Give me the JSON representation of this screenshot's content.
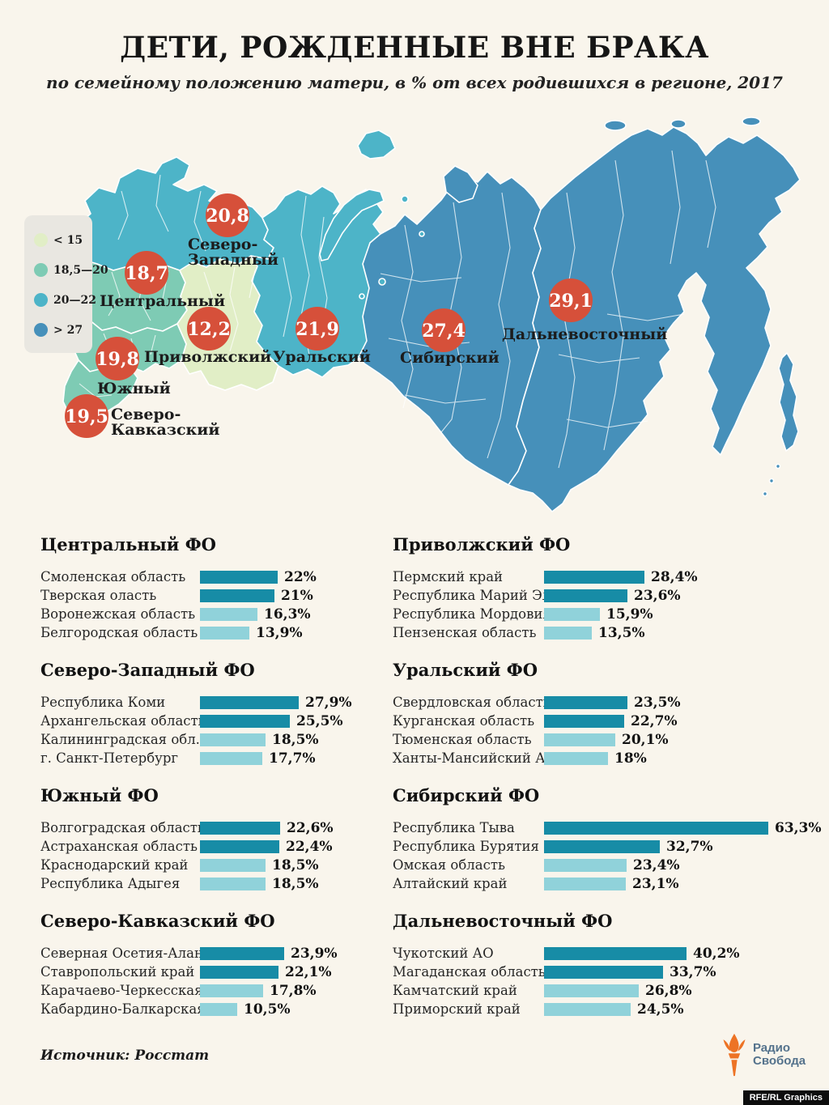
{
  "header": {
    "title": "ДЕТИ, РОЖДЕННЫЕ ВНЕ БРАКА",
    "subtitle": "по семейному положению матери, в % от всех родившихся в регионе, 2017"
  },
  "legend": {
    "items": [
      {
        "label": "< 15",
        "color": "#e1eec6"
      },
      {
        "label": "18,5—20",
        "color": "#7ecbb4"
      },
      {
        "label": "20—22",
        "color": "#4db4c8"
      },
      {
        "label": "> 27",
        "color": "#4690ba"
      }
    ]
  },
  "map": {
    "palette": {
      "lt15": "#e1eec6",
      "b18_20": "#7ecbb4",
      "b20_22": "#4db4c8",
      "gt27": "#4690ba"
    },
    "badge_color": "#d6503a",
    "badge_text_color": "#ffffff"
  },
  "chart_data": [
    {
      "type": "choropleth",
      "title": "Дети, рожденные вне брака по федеральным округам, %",
      "legend_bins": [
        "< 15",
        "18,5—20",
        "20—22",
        "> 27"
      ],
      "districts": [
        {
          "name": "Северо-Западный",
          "value": 20.8,
          "display": "20,8",
          "label_lines": [
            "Северо-",
            "Западный"
          ],
          "badge": [
            281,
            128
          ],
          "label": [
            232,
            170
          ]
        },
        {
          "name": "Центральный",
          "value": 18.7,
          "display": "18,7",
          "label_lines": [
            "Центральный"
          ],
          "badge": [
            181,
            199
          ],
          "label": [
            123,
            240
          ]
        },
        {
          "name": "Приволжский",
          "value": 12.2,
          "display": "12,2",
          "label_lines": [
            "Приволжский"
          ],
          "badge": [
            258,
            268
          ],
          "label": [
            178,
            309
          ]
        },
        {
          "name": "Уральский",
          "value": 21.9,
          "display": "21,9",
          "label_lines": [
            "Уральский"
          ],
          "badge": [
            392,
            268
          ],
          "label": [
            337,
            309
          ]
        },
        {
          "name": "Сибирский",
          "value": 27.4,
          "display": "27,4",
          "label_lines": [
            "Сибирский"
          ],
          "badge": [
            548,
            270
          ],
          "label": [
            494,
            310
          ]
        },
        {
          "name": "Дальневосточный",
          "value": 29.1,
          "display": "29,1",
          "label_lines": [
            "Дальневосточный"
          ],
          "badge": [
            705,
            233
          ],
          "label": [
            620,
            281
          ]
        },
        {
          "name": "Южный",
          "value": 19.8,
          "display": "19,8",
          "label_lines": [
            "Южный"
          ],
          "badge": [
            145,
            305
          ],
          "label": [
            120,
            348
          ]
        },
        {
          "name": "Северо-Кавказский",
          "value": 19.5,
          "display": "19,5",
          "label_lines": [
            "Северо-",
            "Кавказский"
          ],
          "badge": [
            107,
            376
          ],
          "label": [
            137,
            380
          ]
        }
      ]
    },
    {
      "type": "bar",
      "title": "Центральный ФО",
      "column": "left",
      "rows": [
        {
          "region": "Смоленская область",
          "value": 22,
          "display": "22%"
        },
        {
          "region": "Тверская оласть",
          "value": 21,
          "display": "21%"
        },
        {
          "region": "Воронежская область",
          "value": 16.3,
          "display": "16,3%"
        },
        {
          "region": "Белгородская область",
          "value": 13.9,
          "display": "13,9%"
        }
      ]
    },
    {
      "type": "bar",
      "title": "Приволжский ФО",
      "column": "right",
      "rows": [
        {
          "region": "Пермский край",
          "value": 28.4,
          "display": "28,4%"
        },
        {
          "region": "Республика Марий Эл",
          "value": 23.6,
          "display": "23,6%"
        },
        {
          "region": "Республика Мордовия",
          "value": 15.9,
          "display": "15,9%"
        },
        {
          "region": "Пензенская область",
          "value": 13.5,
          "display": "13,5%"
        }
      ]
    },
    {
      "type": "bar",
      "title": "Северо-Западный ФО",
      "column": "left",
      "rows": [
        {
          "region": "Республика Коми",
          "value": 27.9,
          "display": "27,9%"
        },
        {
          "region": "Архангельская область",
          "value": 25.5,
          "display": "25,5%"
        },
        {
          "region": "Калининградская обл.",
          "value": 18.5,
          "display": "18,5%"
        },
        {
          "region": "г. Санкт-Петербург",
          "value": 17.7,
          "display": "17,7%"
        }
      ]
    },
    {
      "type": "bar",
      "title": "Уральский ФО",
      "column": "right",
      "rows": [
        {
          "region": "Свердловская область",
          "value": 23.5,
          "display": "23,5%"
        },
        {
          "region": "Курганская область",
          "value": 22.7,
          "display": "22,7%"
        },
        {
          "region": "Тюменская область",
          "value": 20.1,
          "display": "20,1%"
        },
        {
          "region": "Ханты-Мансийский АО",
          "value": 18,
          "display": "18%"
        }
      ]
    },
    {
      "type": "bar",
      "title": "Южный ФО",
      "column": "left",
      "rows": [
        {
          "region": "Волгоградская область",
          "value": 22.6,
          "display": "22,6%"
        },
        {
          "region": "Астраханская область",
          "value": 22.4,
          "display": "22,4%"
        },
        {
          "region": "Краснодарский край",
          "value": 18.5,
          "display": "18,5%"
        },
        {
          "region": "Республика Адыгея",
          "value": 18.5,
          "display": "18,5%"
        }
      ]
    },
    {
      "type": "bar",
      "title": "Сибирский ФО",
      "column": "right",
      "rows": [
        {
          "region": "Республика Тыва",
          "value": 63.3,
          "display": "63,3%"
        },
        {
          "region": "Республика Бурятия",
          "value": 32.7,
          "display": "32,7%"
        },
        {
          "region": "Омская область",
          "value": 23.4,
          "display": "23,4%"
        },
        {
          "region": "Алтайский край",
          "value": 23.1,
          "display": "23,1%"
        }
      ]
    },
    {
      "type": "bar",
      "title": "Северо-Кавказский ФО",
      "column": "left",
      "rows": [
        {
          "region": "Северная Осетия-Алания",
          "value": 23.9,
          "display": "23,9%"
        },
        {
          "region": "Ставропольский край",
          "value": 22.1,
          "display": "22,1%"
        },
        {
          "region": "Карачаево-Черкесская Р.",
          "value": 17.8,
          "display": "17,8%"
        },
        {
          "region": "Кабардино-Балкарская Р.",
          "value": 10.5,
          "display": "10,5%"
        }
      ]
    },
    {
      "type": "bar",
      "title": "Дальневосточный ФО",
      "column": "right",
      "rows": [
        {
          "region": "Чукотский АО",
          "value": 40.2,
          "display": "40,2%"
        },
        {
          "region": "Магаданская область",
          "value": 33.7,
          "display": "33,7%"
        },
        {
          "region": "Камчатский край",
          "value": 26.8,
          "display": "26,8%"
        },
        {
          "region": "Приморский край",
          "value": 24.5,
          "display": "24,5%"
        }
      ]
    }
  ],
  "bars_style": {
    "dark": "#178ca6",
    "light": "#90d2da"
  },
  "footer": {
    "source": "Источник: Росстат",
    "logo_line1": "Радио",
    "logo_line2": "Свобода",
    "credit": "RFE/RL Graphics"
  }
}
